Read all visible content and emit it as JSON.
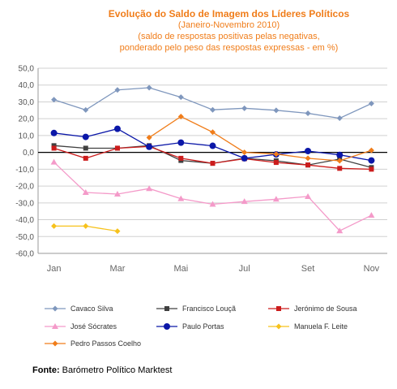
{
  "title": "Evolução do Saldo  de Imagem dos Líderes Políticos",
  "subtitle_lines": [
    "(Janeiro-Novembro 2010)",
    "(saldo de respostas positivas pelas negativas,",
    "ponderado pelo peso das respostas expressas - em %)"
  ],
  "source": {
    "label": "Fonte:",
    "text": "Barómetro Político Marktest"
  },
  "chart_data": {
    "type": "line",
    "title": "Evolução do Saldo  de Imagem dos Líderes Políticos",
    "x": [
      1,
      2,
      3,
      4,
      5,
      6,
      7,
      8,
      9,
      10,
      11
    ],
    "x_tick_labels": [
      {
        "x": 1,
        "label": "Jan"
      },
      {
        "x": 3,
        "label": "Mar"
      },
      {
        "x": 5,
        "label": "Mai"
      },
      {
        "x": 7,
        "label": "Jul"
      },
      {
        "x": 9,
        "label": "Set"
      },
      {
        "x": 11,
        "label": "Nov"
      }
    ],
    "ylim": [
      -60,
      50
    ],
    "y_ticks": [
      "50,0",
      "40,0",
      "30,0",
      "20,0",
      "10,0",
      "0,0",
      "-10,0",
      "-20,0",
      "-30,0",
      "-40,0",
      "-50,0",
      "-60,0"
    ],
    "grid": true,
    "legend_position": "bottom",
    "series": [
      {
        "name": "Cavaco Silva",
        "color": "#7f97bd",
        "marker": "diamond",
        "points": [
          [
            1,
            31.3
          ],
          [
            2,
            25.2
          ],
          [
            3,
            37.1
          ],
          [
            4,
            38.4
          ],
          [
            5,
            32.8
          ],
          [
            6,
            25.3
          ],
          [
            7,
            26.2
          ],
          [
            8,
            25.0
          ],
          [
            9,
            23.2
          ],
          [
            10,
            20.3
          ],
          [
            11,
            29.0
          ]
        ]
      },
      {
        "name": "Francisco Louçã",
        "color": "#404040",
        "marker": "square",
        "points": [
          [
            1,
            4.0
          ],
          [
            2,
            2.5
          ],
          [
            3,
            2.5
          ],
          [
            4,
            4.0
          ],
          [
            5,
            -4.8
          ],
          [
            6,
            -6.5
          ],
          [
            7,
            -3.5
          ],
          [
            8,
            -5.0
          ],
          [
            9,
            -7.5
          ],
          [
            10,
            -4.0
          ],
          [
            11,
            -9.0
          ]
        ]
      },
      {
        "name": "Jerónimo de Sousa",
        "color": "#cc1c1c",
        "marker": "square",
        "points": [
          [
            1,
            2.5
          ],
          [
            2,
            -3.5
          ],
          [
            3,
            2.5
          ],
          [
            4,
            3.5
          ],
          [
            5,
            -3.5
          ],
          [
            6,
            -6.5
          ],
          [
            7,
            -3.8
          ],
          [
            8,
            -6.0
          ],
          [
            9,
            -7.5
          ],
          [
            10,
            -9.5
          ],
          [
            11,
            -10.0
          ]
        ]
      },
      {
        "name": "José Sócrates",
        "color": "#f49ac9",
        "marker": "triangle",
        "points": [
          [
            1,
            -5.8
          ],
          [
            2,
            -23.8
          ],
          [
            3,
            -24.8
          ],
          [
            4,
            -21.5
          ],
          [
            5,
            -27.5
          ],
          [
            6,
            -30.8
          ],
          [
            7,
            -29.2
          ],
          [
            8,
            -27.8
          ],
          [
            9,
            -26.2
          ],
          [
            10,
            -46.6
          ],
          [
            11,
            -37.4
          ]
        ]
      },
      {
        "name": "Paulo Portas",
        "color": "#0b17a8",
        "marker": "circle",
        "points": [
          [
            1,
            11.5
          ],
          [
            2,
            9.2
          ],
          [
            3,
            14.0
          ],
          [
            4,
            3.3
          ],
          [
            5,
            5.8
          ],
          [
            6,
            3.9
          ],
          [
            7,
            -3.5
          ],
          [
            8,
            -1.2
          ],
          [
            9,
            0.8
          ],
          [
            10,
            -1.5
          ],
          [
            11,
            -4.8
          ]
        ]
      },
      {
        "name": "Manuela F. Leite",
        "color": "#f7c21c",
        "marker": "diamond",
        "points": [
          [
            1,
            -43.8
          ],
          [
            2,
            -43.8
          ],
          [
            3,
            -46.8
          ]
        ]
      },
      {
        "name": "Pedro Passos Coelho",
        "color": "#f07d1a",
        "marker": "diamond",
        "points": [
          [
            4,
            8.8
          ],
          [
            5,
            21.3
          ],
          [
            6,
            12.0
          ],
          [
            7,
            0.0
          ],
          [
            8,
            -1.0
          ],
          [
            9,
            -3.5
          ],
          [
            10,
            -5.0
          ],
          [
            11,
            1.2
          ]
        ]
      }
    ]
  }
}
